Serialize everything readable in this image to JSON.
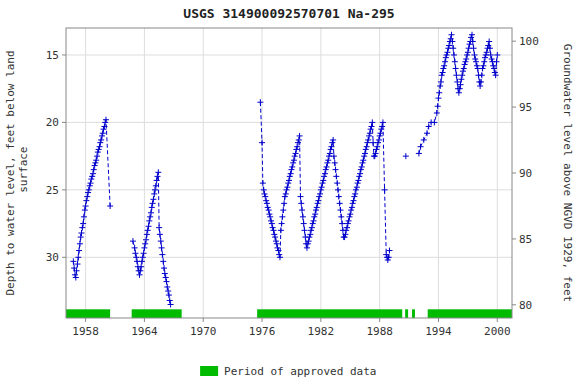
{
  "chart_data": {
    "type": "line",
    "title": "USGS 314900092570701 Na-295",
    "ylabel": "Depth to water level, feet below land\n surface",
    "y2label": "Groundwater level above NGVD 1929, feet",
    "xlim": [
      1956.0,
      2001.5
    ],
    "xticks": [
      1958,
      1964,
      1970,
      1976,
      1982,
      1988,
      1994,
      2000
    ],
    "ylim": [
      34.5,
      13.0
    ],
    "yticks": [
      15,
      20,
      25,
      30
    ],
    "y2lim": [
      79.0,
      101.0
    ],
    "y2ticks": [
      80,
      85,
      90,
      95,
      100
    ],
    "grid": true,
    "legend": "bottom",
    "marker": "plus",
    "line_style": "dashed",
    "x": [
      1956.75,
      1956.83,
      1956.92,
      1957.0,
      1957.08,
      1957.17,
      1957.25,
      1957.33,
      1957.42,
      1957.5,
      1957.58,
      1957.67,
      1957.75,
      1957.83,
      1957.92,
      1958.0,
      1958.08,
      1958.17,
      1958.25,
      1958.33,
      1958.42,
      1958.5,
      1958.58,
      1958.67,
      1958.75,
      1958.83,
      1958.92,
      1959.0,
      1959.08,
      1959.17,
      1959.25,
      1959.33,
      1959.42,
      1959.5,
      1959.58,
      1959.67,
      1959.75,
      1959.83,
      1959.92,
      1960.0,
      1960.08,
      1960.5,
      null,
      1962.83,
      1963.0,
      1963.08,
      1963.17,
      1963.25,
      1963.33,
      1963.42,
      1963.5,
      1963.58,
      1963.67,
      1963.75,
      1963.83,
      1963.92,
      1964.0,
      1964.08,
      1964.17,
      1964.25,
      1964.33,
      1964.42,
      1964.5,
      1964.58,
      1964.67,
      1964.75,
      1964.83,
      1964.92,
      1965.0,
      1965.08,
      1965.17,
      1965.25,
      1965.33,
      1965.42,
      1965.5,
      1965.58,
      1965.67,
      1965.75,
      1965.83,
      1965.92,
      1966.0,
      1966.08,
      1966.17,
      1966.25,
      1966.33,
      1966.42,
      1966.5,
      1966.58,
      1966.67,
      null,
      1975.83,
      1976.0,
      1976.08,
      1976.17,
      1976.25,
      1976.33,
      1976.42,
      1976.5,
      1976.58,
      1976.67,
      1976.75,
      1976.83,
      1976.92,
      1977.0,
      1977.08,
      1977.17,
      1977.25,
      1977.33,
      1977.42,
      1977.5,
      1977.58,
      1977.67,
      1977.75,
      1977.83,
      1977.92,
      1978.0,
      1978.08,
      1978.17,
      1978.25,
      1978.33,
      1978.42,
      1978.5,
      1978.58,
      1978.67,
      1978.75,
      1978.83,
      1978.92,
      1979.0,
      1979.08,
      1979.17,
      1979.25,
      1979.33,
      1979.42,
      1979.5,
      1979.58,
      1979.67,
      1979.75,
      1979.83,
      1979.92,
      1980.0,
      1980.08,
      1980.17,
      1980.25,
      1980.33,
      1980.42,
      1980.5,
      1980.58,
      1980.67,
      1980.75,
      1980.83,
      1980.92,
      1981.0,
      1981.08,
      1981.17,
      1981.25,
      1981.33,
      1981.42,
      1981.5,
      1981.58,
      1981.67,
      1981.75,
      1981.83,
      1981.92,
      1982.0,
      1982.08,
      1982.17,
      1982.25,
      1982.33,
      1982.42,
      1982.5,
      1982.58,
      1982.67,
      1982.75,
      1982.83,
      1982.92,
      1983.0,
      1983.08,
      1983.17,
      1983.25,
      1983.33,
      1983.42,
      1983.5,
      1983.58,
      1983.67,
      1983.75,
      1983.83,
      1983.92,
      1984.0,
      1984.08,
      1984.17,
      1984.25,
      1984.33,
      1984.42,
      1984.5,
      1984.58,
      1984.67,
      1984.75,
      1984.83,
      1984.92,
      1985.0,
      1985.08,
      1985.17,
      1985.25,
      1985.33,
      1985.42,
      1985.5,
      1985.58,
      1985.67,
      1985.75,
      1985.83,
      1985.92,
      1986.0,
      1986.08,
      1986.17,
      1986.25,
      1986.33,
      1986.42,
      1986.5,
      1986.58,
      1986.67,
      1986.75,
      1986.83,
      1986.92,
      1987.0,
      1987.08,
      1987.17,
      1987.25,
      1987.33,
      1987.42,
      1987.5,
      1987.58,
      1987.67,
      1987.75,
      1987.83,
      1987.92,
      1988.0,
      1988.08,
      1988.17,
      1988.25,
      1988.33,
      1988.5,
      1988.67,
      1988.75,
      1988.83,
      1988.92,
      1989.0,
      null,
      1990.67,
      null,
      1992.0,
      1992.17,
      1992.5,
      1992.83,
      1993.0,
      1993.25,
      1993.58,
      1993.83,
      1993.92,
      1994.0,
      1994.08,
      1994.17,
      1994.25,
      1994.33,
      1994.42,
      1994.5,
      1994.58,
      1994.67,
      1994.75,
      1994.83,
      1994.92,
      1995.0,
      1995.08,
      1995.17,
      1995.25,
      1995.33,
      1995.42,
      1995.5,
      1995.58,
      1995.67,
      1995.75,
      1995.83,
      1995.92,
      1996.0,
      1996.08,
      1996.17,
      1996.25,
      1996.33,
      1996.42,
      1996.5,
      1996.58,
      1996.67,
      1996.75,
      1996.83,
      1996.92,
      1997.0,
      1997.08,
      1997.17,
      1997.25,
      1997.33,
      1997.42,
      1997.5,
      1997.58,
      1997.67,
      1997.75,
      1997.83,
      1997.92,
      1998.0,
      1998.08,
      1998.17,
      1998.25,
      1998.33,
      1998.42,
      1998.5,
      1998.58,
      1998.67,
      1998.75,
      1998.83,
      1998.92,
      1999.0,
      1999.08,
      1999.17,
      1999.25,
      1999.33,
      1999.42,
      1999.5,
      1999.58,
      1999.67,
      1999.75,
      1999.83,
      1999.92,
      2000.0
    ],
    "series": [
      {
        "color": "#0000cc",
        "values": [
          30.3,
          30.8,
          31.3,
          31.5,
          31.0,
          30.5,
          30.0,
          29.5,
          29.0,
          28.5,
          28.2,
          27.8,
          27.5,
          27.0,
          26.5,
          26.2,
          25.8,
          25.5,
          25.2,
          25.0,
          24.7,
          24.5,
          24.2,
          24.0,
          23.8,
          23.5,
          23.2,
          23.0,
          22.8,
          22.5,
          22.2,
          22.0,
          21.8,
          21.5,
          21.3,
          21.0,
          20.8,
          20.5,
          20.3,
          20.0,
          19.8,
          26.2,
          null,
          28.8,
          29.3,
          29.7,
          30.0,
          30.3,
          30.7,
          31.0,
          31.3,
          31.0,
          30.7,
          30.3,
          30.0,
          29.7,
          29.3,
          29.0,
          28.7,
          28.3,
          28.0,
          27.7,
          27.3,
          27.0,
          26.7,
          26.3,
          26.0,
          25.7,
          25.3,
          25.0,
          24.7,
          24.3,
          24.0,
          23.7,
          27.8,
          28.3,
          28.8,
          29.3,
          29.8,
          30.3,
          30.8,
          31.2,
          31.5,
          31.8,
          32.2,
          32.5,
          32.8,
          33.2,
          33.5,
          null,
          18.5,
          21.5,
          24.5,
          25.0,
          25.3,
          25.5,
          25.8,
          26.0,
          26.3,
          26.5,
          26.8,
          27.0,
          27.3,
          27.5,
          27.8,
          28.0,
          28.3,
          28.5,
          28.8,
          29.0,
          29.3,
          29.5,
          29.8,
          30.0,
          28.0,
          27.5,
          27.0,
          26.5,
          26.0,
          25.5,
          25.3,
          25.0,
          24.8,
          24.5,
          24.3,
          24.0,
          23.8,
          23.5,
          23.3,
          23.0,
          22.8,
          22.5,
          22.3,
          22.0,
          21.8,
          21.5,
          21.3,
          21.0,
          25.5,
          26.0,
          26.5,
          27.0,
          27.5,
          28.0,
          28.5,
          29.0,
          29.3,
          29.0,
          28.8,
          28.5,
          28.3,
          28.0,
          27.8,
          27.5,
          27.3,
          27.0,
          26.8,
          26.5,
          26.3,
          26.0,
          25.8,
          25.5,
          25.3,
          25.0,
          24.8,
          24.5,
          24.3,
          24.0,
          23.8,
          23.5,
          23.3,
          23.0,
          22.8,
          22.5,
          22.3,
          22.0,
          21.8,
          21.5,
          21.3,
          22.5,
          23.0,
          23.5,
          24.0,
          24.5,
          25.0,
          25.5,
          26.0,
          26.5,
          27.0,
          27.5,
          28.0,
          28.5,
          28.5,
          28.3,
          28.0,
          27.8,
          27.5,
          27.3,
          27.0,
          26.8,
          26.5,
          26.3,
          26.0,
          25.8,
          25.5,
          25.3,
          25.0,
          24.8,
          24.5,
          24.3,
          24.0,
          23.8,
          23.5,
          23.3,
          23.0,
          22.8,
          22.5,
          22.3,
          22.0,
          21.8,
          21.5,
          21.3,
          21.0,
          20.8,
          20.5,
          20.3,
          20.0,
          21.5,
          22.5,
          22.5,
          22.3,
          22.0,
          21.8,
          21.5,
          21.3,
          21.0,
          20.8,
          20.5,
          20.3,
          20.0,
          25.0,
          29.8,
          30.0,
          30.2,
          30.0,
          29.5,
          null,
          22.5,
          null,
          22.3,
          21.8,
          21.3,
          20.8,
          20.3,
          20.0,
          20.0,
          19.3,
          18.8,
          18.2,
          17.8,
          17.3,
          17.0,
          16.5,
          16.3,
          16.0,
          15.8,
          15.5,
          15.2,
          15.0,
          14.8,
          14.5,
          14.3,
          14.0,
          13.8,
          13.5,
          14.0,
          14.5,
          15.0,
          15.5,
          16.0,
          16.5,
          17.0,
          17.5,
          17.8,
          17.5,
          17.2,
          16.8,
          16.5,
          16.2,
          16.0,
          15.7,
          15.5,
          15.3,
          15.0,
          14.8,
          14.5,
          14.2,
          14.0,
          13.7,
          13.5,
          14.0,
          14.5,
          15.0,
          15.3,
          15.5,
          15.8,
          16.0,
          16.5,
          17.0,
          17.3,
          17.0,
          16.5,
          16.0,
          15.8,
          15.5,
          15.2,
          15.0,
          14.8,
          14.5,
          14.3,
          14.0,
          14.5,
          15.0,
          15.3,
          15.5,
          15.8,
          16.0,
          16.3,
          16.5,
          15.5,
          15.0
        ]
      }
    ],
    "approved_periods": {
      "name": "Period of approved data",
      "color": "#00bb00",
      "ranges": [
        [
          1956.0,
          1960.5
        ],
        [
          1962.7,
          1967.8
        ],
        [
          1975.5,
          1990.3
        ],
        [
          1990.6,
          1990.9
        ],
        [
          1991.3,
          1991.6
        ],
        [
          1992.9,
          2001.5
        ]
      ]
    }
  }
}
